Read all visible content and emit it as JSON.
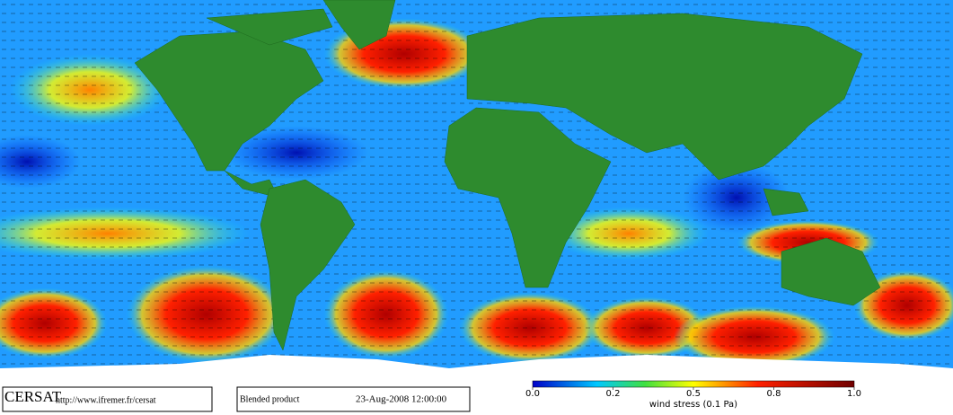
{
  "logo": "CERSAT",
  "url": "http://www.ifremer.fr/cersat",
  "product": "Blended product",
  "timestamp": "23-Aug-2008 12:00:00",
  "colorbar": {
    "label": "wind stress (0.1 Pa)",
    "ticks": [
      {
        "value": 0,
        "label": "0.0"
      },
      {
        "value": 0.2,
        "label": "0.2"
      },
      {
        "value": 0.5,
        "label": "0.5"
      },
      {
        "value": 0.8,
        "label": "0.8"
      },
      {
        "value": 1,
        "label": "1.0"
      }
    ]
  }
}
